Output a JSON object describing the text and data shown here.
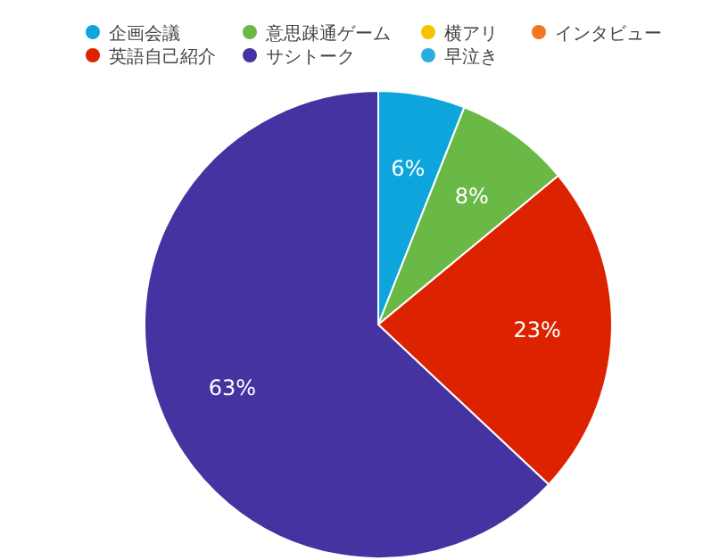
{
  "chart_data": {
    "type": "pie",
    "categories": [
      "企画会議",
      "意思疎通ゲーム",
      "横アリ",
      "インタビュー",
      "英語自己紹介",
      "サシトーク",
      "早泣き"
    ],
    "values": [
      6,
      8,
      0,
      0,
      23,
      63,
      0
    ],
    "colors": [
      "#0ea5dc",
      "#6ab946",
      "#f5c400",
      "#f0781e",
      "#dd2200",
      "#4433a0",
      "#2aaee0"
    ],
    "value_labels": [
      "6%",
      "8%",
      null,
      null,
      "23%",
      "63%",
      null
    ],
    "legend": "top"
  }
}
